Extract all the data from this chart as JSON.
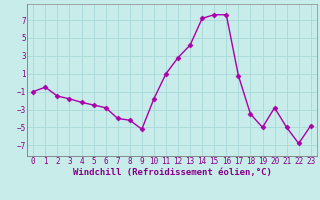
{
  "x": [
    0,
    1,
    2,
    3,
    4,
    5,
    6,
    7,
    8,
    9,
    10,
    11,
    12,
    13,
    14,
    15,
    16,
    17,
    18,
    19,
    20,
    21,
    22,
    23
  ],
  "y": [
    -1.0,
    -0.5,
    -1.5,
    -1.8,
    -2.2,
    -2.5,
    -2.8,
    -4.0,
    -4.2,
    -5.2,
    -1.8,
    1.0,
    2.8,
    4.2,
    7.2,
    7.6,
    7.6,
    0.8,
    -3.5,
    -5.0,
    -2.8,
    -5.0,
    -6.8,
    -4.8
  ],
  "line_color": "#aa00aa",
  "marker": "D",
  "marker_size": 2.5,
  "linewidth": 1.0,
  "background_color": "#c8ecea",
  "grid_color": "#a8d8d8",
  "xlabel": "Windchill (Refroidissement éolien,°C)",
  "xlabel_fontsize": 6.5,
  "yticks": [
    -7,
    -5,
    -3,
    -1,
    1,
    3,
    5,
    7
  ],
  "xticks": [
    0,
    1,
    2,
    3,
    4,
    5,
    6,
    7,
    8,
    9,
    10,
    11,
    12,
    13,
    14,
    15,
    16,
    17,
    18,
    19,
    20,
    21,
    22,
    23
  ],
  "ylim": [
    -8.2,
    8.8
  ],
  "xlim": [
    -0.5,
    23.5
  ],
  "tick_fontsize": 5.5,
  "tick_color": "#880088",
  "spine_color": "#888888",
  "xlabel_color": "#880088"
}
